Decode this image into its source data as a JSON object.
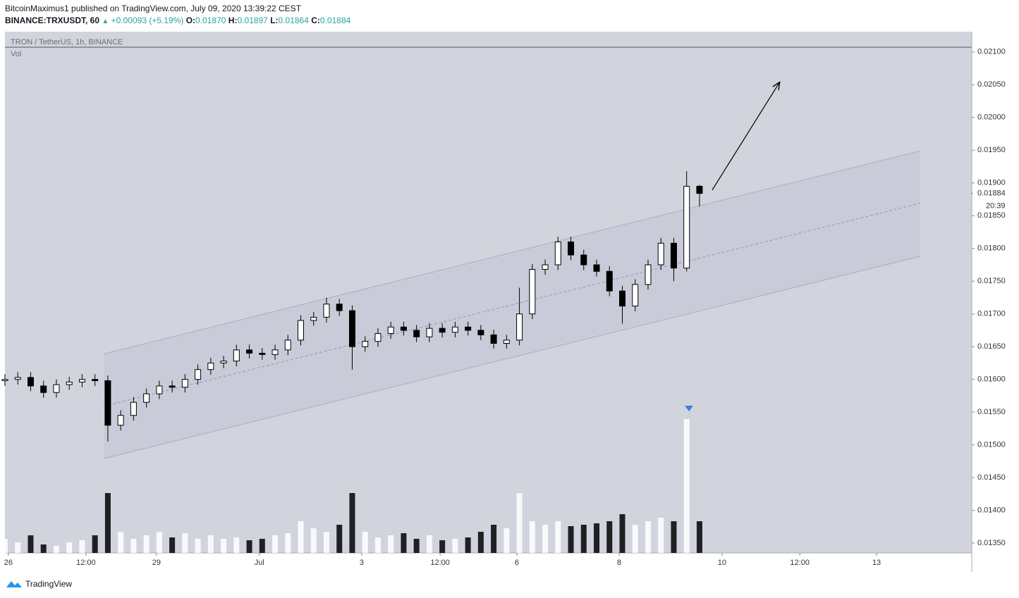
{
  "header": {
    "author_line": "BitcoinMaximus1 published on TradingView.com, July 09, 2020 13:39:22 CEST",
    "symbol": "BINANCE:TRXUSDT, 60",
    "arrow": "▲",
    "change": "+0.00093 (+5.19%)",
    "o_label": "O:",
    "o": "0.01870",
    "h_label": "H:",
    "h": "0.01897",
    "l_label": "L:",
    "l": "0.01864",
    "c_label": "C:",
    "c": "0.01884"
  },
  "chart_data": {
    "type": "candlestick",
    "title": "TRON / TetherUS, 1h, BINANCE",
    "volume_label": "Vol",
    "x": [
      0,
      6,
      12,
      18,
      24,
      30,
      36,
      42,
      48,
      54,
      60,
      66,
      72,
      78,
      84,
      90,
      96,
      102,
      108,
      114,
      120,
      126,
      132,
      138,
      144,
      150,
      156,
      162,
      168,
      174,
      180,
      186,
      192,
      198,
      204,
      210,
      216,
      222,
      228,
      234,
      240,
      246,
      252,
      258,
      264,
      270,
      276,
      282,
      288,
      294,
      300,
      306,
      312,
      318,
      324
    ],
    "open": [
      0.01598,
      0.016,
      0.01603,
      0.0159,
      0.0158,
      0.01592,
      0.01596,
      0.016,
      0.01598,
      0.0153,
      0.01545,
      0.01565,
      0.01578,
      0.0159,
      0.01588,
      0.016,
      0.01615,
      0.01625,
      0.01628,
      0.01645,
      0.0164,
      0.01638,
      0.01645,
      0.0166,
      0.0169,
      0.01695,
      0.01715,
      0.01705,
      0.0165,
      0.01658,
      0.0167,
      0.0168,
      0.01675,
      0.01665,
      0.01678,
      0.01672,
      0.0168,
      0.01675,
      0.01668,
      0.01655,
      0.0166,
      0.017,
      0.01768,
      0.01775,
      0.0181,
      0.0179,
      0.01775,
      0.01765,
      0.01735,
      0.01712,
      0.01745,
      0.01775,
      0.01808,
      0.0177,
      0.01895
    ],
    "high": [
      0.01608,
      0.01611,
      0.01611,
      0.01598,
      0.016,
      0.01604,
      0.01608,
      0.01608,
      0.01606,
      0.01553,
      0.01573,
      0.01586,
      0.01598,
      0.01598,
      0.01608,
      0.01623,
      0.01633,
      0.01636,
      0.01653,
      0.01653,
      0.01648,
      0.01653,
      0.01668,
      0.01698,
      0.01703,
      0.01725,
      0.01723,
      0.01713,
      0.01666,
      0.01678,
      0.01688,
      0.01688,
      0.01683,
      0.01686,
      0.01686,
      0.01688,
      0.01688,
      0.01683,
      0.01676,
      0.01668,
      0.0174,
      0.01776,
      0.01783,
      0.01818,
      0.01818,
      0.01798,
      0.01783,
      0.01773,
      0.01743,
      0.01753,
      0.01783,
      0.01816,
      0.01816,
      0.01918,
      0.01897
    ],
    "low": [
      0.0159,
      0.01592,
      0.01582,
      0.01572,
      0.01572,
      0.01584,
      0.01588,
      0.0159,
      0.01505,
      0.01522,
      0.01537,
      0.01557,
      0.0157,
      0.0158,
      0.0158,
      0.01592,
      0.01607,
      0.01617,
      0.0162,
      0.01632,
      0.0163,
      0.0163,
      0.01637,
      0.01652,
      0.01682,
      0.01687,
      0.01697,
      0.01615,
      0.01642,
      0.0165,
      0.01662,
      0.01667,
      0.01657,
      0.01657,
      0.01664,
      0.01664,
      0.01667,
      0.0166,
      0.01647,
      0.01647,
      0.01652,
      0.01692,
      0.0176,
      0.01767,
      0.01782,
      0.01767,
      0.01757,
      0.01727,
      0.01685,
      0.01704,
      0.01737,
      0.01767,
      0.0175,
      0.01765,
      0.01864
    ],
    "close": [
      0.016,
      0.01603,
      0.0159,
      0.0158,
      0.01592,
      0.01596,
      0.016,
      0.01598,
      0.0153,
      0.01545,
      0.01565,
      0.01578,
      0.0159,
      0.01588,
      0.016,
      0.01615,
      0.01625,
      0.01628,
      0.01645,
      0.0164,
      0.01638,
      0.01645,
      0.0166,
      0.0169,
      0.01695,
      0.01715,
      0.01705,
      0.0165,
      0.01658,
      0.0167,
      0.0168,
      0.01675,
      0.01665,
      0.01678,
      0.01672,
      0.0168,
      0.01675,
      0.01668,
      0.01655,
      0.0166,
      0.017,
      0.01768,
      0.01775,
      0.0181,
      0.0179,
      0.01775,
      0.01765,
      0.01735,
      0.01712,
      0.01745,
      0.01775,
      0.01808,
      0.0177,
      0.01895,
      0.01884
    ],
    "volume": [
      20,
      15,
      25,
      12,
      10,
      15,
      18,
      25,
      85,
      30,
      20,
      25,
      30,
      22,
      28,
      20,
      25,
      20,
      22,
      18,
      20,
      25,
      28,
      45,
      35,
      30,
      40,
      85,
      30,
      22,
      25,
      28,
      20,
      25,
      18,
      20,
      22,
      30,
      40,
      35,
      85,
      45,
      40,
      45,
      38,
      40,
      42,
      45,
      55,
      40,
      45,
      50,
      45,
      190,
      45
    ],
    "up_color": "#ffffff",
    "down_color": "#000000",
    "xlim": [
      0,
      451
    ],
    "ylim": [
      0.01335,
      0.02131
    ],
    "xticks": [
      {
        "value": 1.6,
        "label": "26"
      },
      {
        "value": 37.8,
        "label": "12:00"
      },
      {
        "value": 70.7,
        "label": "29"
      },
      {
        "value": 118.7,
        "label": "Jul"
      },
      {
        "value": 166.4,
        "label": "3"
      },
      {
        "value": 203,
        "label": "12:00"
      },
      {
        "value": 238.8,
        "label": "6"
      },
      {
        "value": 286.5,
        "label": "8"
      },
      {
        "value": 334.5,
        "label": "10"
      },
      {
        "value": 370.8,
        "label": "12:00"
      },
      {
        "value": 406.6,
        "label": "13"
      }
    ],
    "yticks": [
      {
        "value": 0.0135,
        "label": "0.01350"
      },
      {
        "value": 0.014,
        "label": "0.01400"
      },
      {
        "value": 0.0145,
        "label": "0.01450"
      },
      {
        "value": 0.015,
        "label": "0.01500"
      },
      {
        "value": 0.0155,
        "label": "0.01550"
      },
      {
        "value": 0.016,
        "label": "0.01600"
      },
      {
        "value": 0.0165,
        "label": "0.01650"
      },
      {
        "value": 0.017,
        "label": "0.01700"
      },
      {
        "value": 0.0175,
        "label": "0.01750"
      },
      {
        "value": 0.018,
        "label": "0.01800"
      },
      {
        "value": 0.0185,
        "label": "0.01850"
      },
      {
        "value": 0.019,
        "label": "0.01900"
      },
      {
        "value": 0.0195,
        "label": "0.01950"
      },
      {
        "value": 0.02,
        "label": "0.02000"
      },
      {
        "value": 0.0205,
        "label": "0.02050"
      },
      {
        "value": 0.021,
        "label": "0.02100"
      }
    ],
    "last_price": {
      "value": 0.01884,
      "label": "0.01884"
    },
    "countdown": "20:39",
    "channel": {
      "x": [
        46.1,
        427
      ],
      "upper": [
        0.01639,
        0.01949
      ],
      "middle": [
        0.01559,
        0.01869
      ],
      "lower": [
        0.01479,
        0.01788
      ],
      "color": "#9c8fc0"
    },
    "arrow": {
      "x": [
        329.9,
        361.2
      ],
      "y": [
        0.01889,
        0.02053
      ]
    }
  },
  "footer": {
    "brand": "TradingView"
  }
}
